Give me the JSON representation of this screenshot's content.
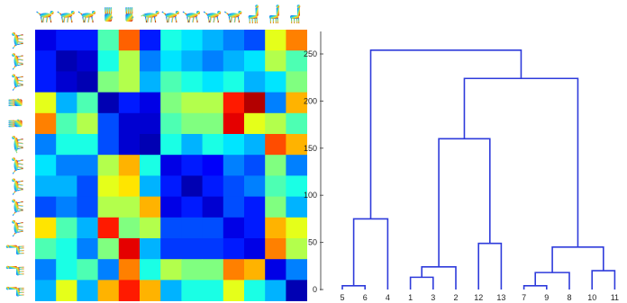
{
  "chart_data": [
    {
      "type": "heatmap",
      "rows": 13,
      "cols": 13,
      "row_labels": [],
      "col_labels": [],
      "colormap": "jet",
      "thumbnail_icons": [
        "horse-icon",
        "horse-icon",
        "horse-icon",
        "hand-icon",
        "hand-icon",
        "gecko-icon",
        "cat-icon",
        "dog-icon",
        "wolf-icon",
        "lioness-icon",
        "centaur-icon",
        "centaur-icon",
        "centaur-icon"
      ],
      "values": [
        [
          0.1,
          0.15,
          0.15,
          0.45,
          0.78,
          0.15,
          0.4,
          0.35,
          0.3,
          0.25,
          0.2,
          0.6,
          0.75
        ],
        [
          0.15,
          0.05,
          0.08,
          0.4,
          0.55,
          0.25,
          0.35,
          0.3,
          0.25,
          0.3,
          0.35,
          0.55,
          0.45
        ],
        [
          0.15,
          0.08,
          0.05,
          0.5,
          0.55,
          0.3,
          0.45,
          0.4,
          0.35,
          0.4,
          0.3,
          0.35,
          0.5
        ],
        [
          0.6,
          0.3,
          0.45,
          0.05,
          0.15,
          0.1,
          0.5,
          0.55,
          0.55,
          0.85,
          0.95,
          0.25,
          0.7
        ],
        [
          0.75,
          0.45,
          0.55,
          0.2,
          0.08,
          0.08,
          0.45,
          0.5,
          0.5,
          0.9,
          0.6,
          0.55,
          0.45
        ],
        [
          0.25,
          0.4,
          0.4,
          0.2,
          0.08,
          0.05,
          0.4,
          0.3,
          0.4,
          0.35,
          0.3,
          0.8,
          0.7
        ],
        [
          0.35,
          0.25,
          0.25,
          0.55,
          0.7,
          0.4,
          0.1,
          0.15,
          0.12,
          0.25,
          0.2,
          0.5,
          0.25
        ],
        [
          0.3,
          0.3,
          0.2,
          0.6,
          0.65,
          0.3,
          0.15,
          0.05,
          0.15,
          0.2,
          0.25,
          0.45,
          0.4
        ],
        [
          0.2,
          0.25,
          0.2,
          0.55,
          0.55,
          0.7,
          0.1,
          0.15,
          0.08,
          0.2,
          0.15,
          0.5,
          0.3
        ],
        [
          0.65,
          0.45,
          0.3,
          0.85,
          0.5,
          0.55,
          0.2,
          0.2,
          0.2,
          0.1,
          0.15,
          0.7,
          0.6
        ],
        [
          0.45,
          0.4,
          0.25,
          0.5,
          0.9,
          0.3,
          0.18,
          0.18,
          0.18,
          0.15,
          0.1,
          0.75,
          0.55
        ],
        [
          0.25,
          0.4,
          0.45,
          0.25,
          0.75,
          0.4,
          0.55,
          0.5,
          0.5,
          0.75,
          0.7,
          0.1,
          0.25
        ],
        [
          0.3,
          0.6,
          0.3,
          0.7,
          0.85,
          0.7,
          0.3,
          0.4,
          0.4,
          0.6,
          0.4,
          0.3,
          0.05
        ]
      ]
    },
    {
      "type": "dendrogram",
      "ylim": [
        0,
        270
      ],
      "yticks": [
        0,
        50,
        100,
        150,
        200,
        250
      ],
      "leaf_order": [
        "5",
        "6",
        "4",
        "1",
        "3",
        "2",
        "12",
        "13",
        "7",
        "9",
        "8",
        "10",
        "11"
      ],
      "line_color": "#2e3bdb",
      "merges": [
        {
          "height": 4,
          "left": {
            "leaf": "5"
          },
          "right": {
            "leaf": "6"
          }
        },
        {
          "height": 75,
          "left": {
            "merge": 0
          },
          "right": {
            "leaf": "4"
          }
        },
        {
          "height": 13,
          "left": {
            "leaf": "1"
          },
          "right": {
            "leaf": "3"
          }
        },
        {
          "height": 24,
          "left": {
            "merge": 2
          },
          "right": {
            "leaf": "2"
          }
        },
        {
          "height": 49,
          "left": {
            "leaf": "12"
          },
          "right": {
            "leaf": "13"
          }
        },
        {
          "height": 160,
          "left": {
            "merge": 3
          },
          "right": {
            "merge": 4
          }
        },
        {
          "height": 4,
          "left": {
            "leaf": "7"
          },
          "right": {
            "leaf": "9"
          }
        },
        {
          "height": 18,
          "left": {
            "merge": 6
          },
          "right": {
            "leaf": "8"
          }
        },
        {
          "height": 20,
          "left": {
            "leaf": "10"
          },
          "right": {
            "leaf": "11"
          }
        },
        {
          "height": 45,
          "left": {
            "merge": 7
          },
          "right": {
            "merge": 8
          }
        },
        {
          "height": 224,
          "left": {
            "merge": 5
          },
          "right": {
            "merge": 9
          }
        },
        {
          "height": 254,
          "left": {
            "merge": 1
          },
          "right": {
            "merge": 10
          }
        }
      ]
    }
  ]
}
